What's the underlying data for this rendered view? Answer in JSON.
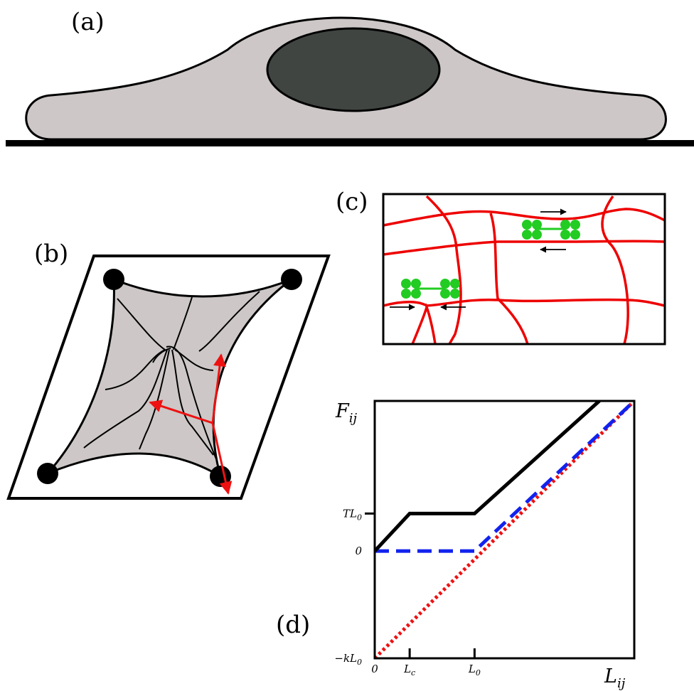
{
  "panels": {
    "a": {
      "label": "(a)"
    },
    "b": {
      "label": "(b)"
    },
    "c": {
      "label": "(c)"
    },
    "d": {
      "label": "(d)"
    }
  },
  "colors": {
    "cell_fill": "#cdc7c7",
    "nucleus": "#414542",
    "fiber": "#ee0000",
    "motor": "#22cc22",
    "force_arrow": "#ee1111",
    "blue_dash": "#1122ee",
    "red_dot": "#ee1111"
  },
  "chart_data": {
    "type": "line",
    "xlabel": "L_ij",
    "ylabel": "F_ij",
    "x_ticks": [
      "0",
      "L_c",
      "L_0"
    ],
    "y_ticks": [
      "−kL_0",
      "0",
      "TL_0"
    ],
    "xlim": [
      0,
      2.6
    ],
    "ylim": [
      -1,
      1.4
    ],
    "series": [
      {
        "style": "solid",
        "color": "#000000",
        "x": [
          0,
          0.35,
          1.0,
          2.25
        ],
        "y": [
          0,
          0.35,
          0.35,
          1.4
        ]
      },
      {
        "style": "dashed",
        "color": "#1122ee",
        "x": [
          0,
          1.0,
          2.6
        ],
        "y": [
          0,
          0,
          1.4
        ]
      },
      {
        "style": "dotted",
        "color": "#ee1111",
        "x": [
          0,
          2.6
        ],
        "y": [
          -1,
          1.4
        ]
      }
    ]
  }
}
